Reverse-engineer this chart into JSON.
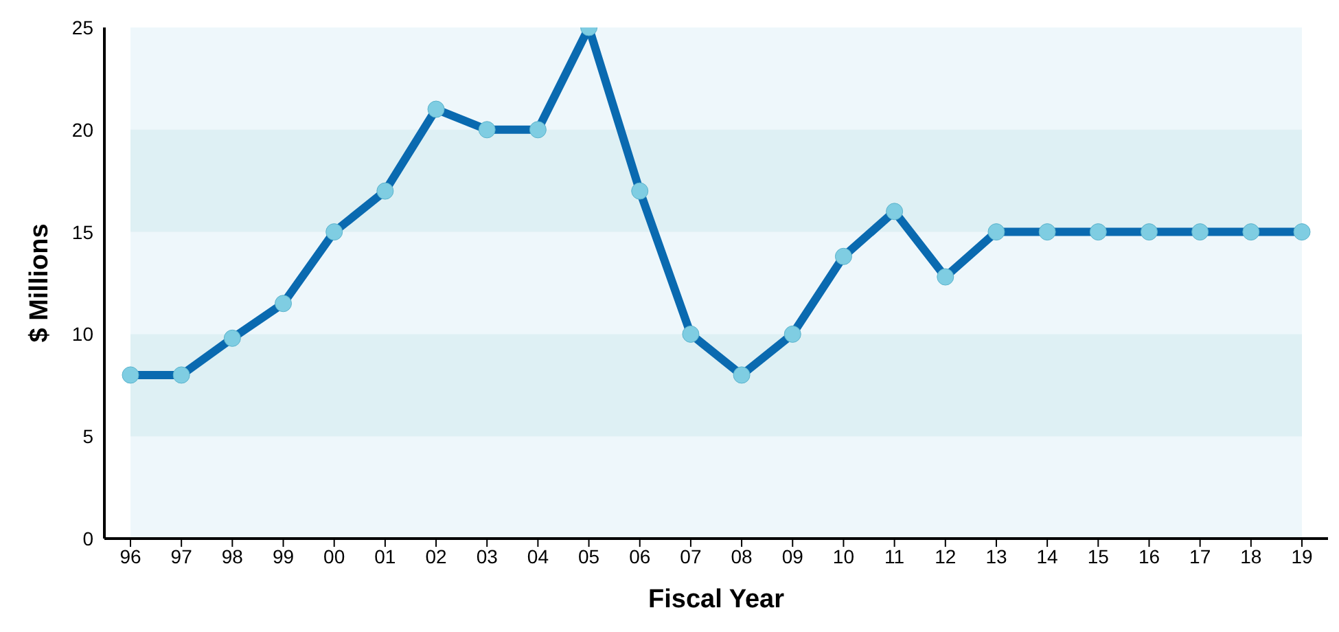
{
  "chart_data": {
    "type": "line",
    "xlabel": "Fiscal Year",
    "ylabel": "$ Millions",
    "categories": [
      "96",
      "97",
      "98",
      "99",
      "00",
      "01",
      "02",
      "03",
      "04",
      "05",
      "06",
      "07",
      "08",
      "09",
      "10",
      "11",
      "12",
      "13",
      "14",
      "15",
      "16",
      "17",
      "18",
      "19"
    ],
    "series": [
      {
        "color": "#0a6ab0",
        "values": [
          8,
          8,
          9.8,
          11.5,
          15,
          17,
          21,
          20,
          20,
          25,
          17,
          10,
          8,
          10,
          13.8,
          16,
          12.8,
          15,
          15,
          15,
          15,
          15,
          15,
          15
        ]
      }
    ],
    "ylim": [
      0,
      25
    ],
    "yticks": [
      0,
      5,
      10,
      15,
      20,
      25
    ],
    "marker": "circle",
    "line_style": "solid",
    "bands": [
      {
        "axis": "y",
        "from": 5,
        "to": 10,
        "color": "#def0f4"
      },
      {
        "axis": "y",
        "from": 15,
        "to": 20,
        "color": "#def0f4"
      }
    ]
  }
}
